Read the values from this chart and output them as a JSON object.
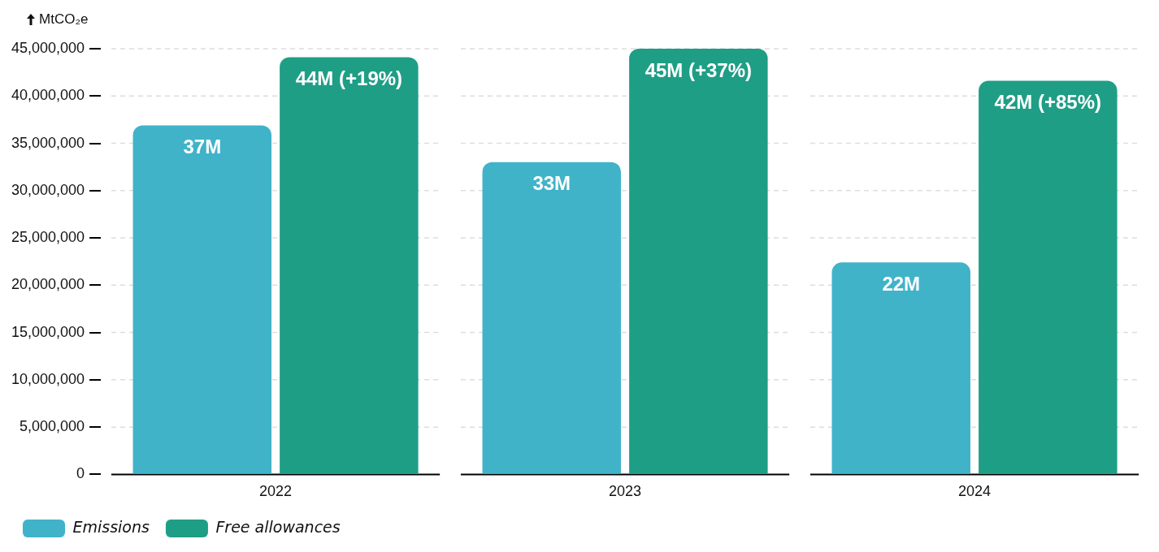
{
  "chart_data": {
    "type": "bar",
    "ylabel": "MtCO₂e",
    "categories": [
      "2022",
      "2023",
      "2024"
    ],
    "series": [
      {
        "name": "Emissions",
        "color": "#41b3c9",
        "values": [
          36900000,
          33000000,
          22400000
        ],
        "value_labels": [
          "37M",
          "33M",
          "22M"
        ]
      },
      {
        "name": "Free allowances",
        "color": "#1f9e86",
        "values": [
          44100000,
          45000000,
          41600000
        ],
        "value_labels": [
          "44M (+19%)",
          "45M (+37%)",
          "42M (+85%)"
        ]
      }
    ],
    "ylim": [
      0,
      45000000
    ],
    "yticks": [
      0,
      {
        "value": 5000000,
        "label": "5,000,000"
      },
      {
        "value": 10000000,
        "label": "10,000,000"
      },
      {
        "value": 15000000,
        "label": "15,000,000"
      },
      {
        "value": 20000000,
        "label": "20,000,000"
      },
      {
        "value": 25000000,
        "label": "25,000,000"
      },
      {
        "value": 30000000,
        "label": "30,000,000"
      },
      {
        "value": 35000000,
        "label": "35,000,000"
      },
      {
        "value": 40000000,
        "label": "40,000,000"
      },
      {
        "value": 45000000,
        "label": "45,000,000"
      }
    ],
    "grid": "y",
    "legend": "bottom left"
  }
}
